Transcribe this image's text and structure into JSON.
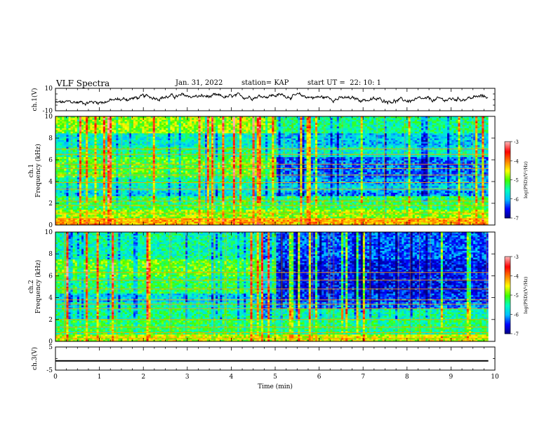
{
  "header": {
    "title": "VLF Spectra",
    "date": "Jan. 31, 2022",
    "station": "station= KAP",
    "start": "start UT =  22: 10: 1"
  },
  "colors": {
    "waveform": "#000000",
    "colormap": [
      "#00007f",
      "#0000ff",
      "#00bfff",
      "#00ffbf",
      "#40ff00",
      "#ffff00",
      "#ff8000",
      "#ff0000",
      "#ffb0b0"
    ]
  },
  "chart_data": [
    {
      "type": "line",
      "panel": "ch1-waveform",
      "ylabel": "ch.1(V)",
      "ylim": [
        -10,
        10
      ],
      "yticks": [
        "10",
        "-10"
      ],
      "xlim": [
        0,
        10
      ],
      "x_end": 9.85,
      "trend": {
        "x": [
          0,
          1,
          2,
          3,
          4,
          5,
          6,
          7,
          8,
          9,
          9.85
        ],
        "y": [
          -3,
          -2,
          2,
          3,
          2,
          4,
          2,
          0,
          -1,
          0,
          3
        ]
      }
    },
    {
      "type": "heatmap",
      "panel": "ch1-spectrogram",
      "ylabel": "ch.1",
      "ylabel2": "Frequency (kHz)",
      "ylim": [
        0,
        10
      ],
      "yticks": [
        "0",
        "2",
        "4",
        "6",
        "8",
        "10"
      ],
      "xlim": [
        0,
        10
      ],
      "x_end": 9.85,
      "colorbar": {
        "label": "log(PSD)(V²/Hz)",
        "range": [
          -7,
          -3
        ],
        "ticks": [
          "-3",
          "-4",
          "-5",
          "-6",
          "-7"
        ]
      },
      "profile_before_5min": [
        {
          "f": [
            0,
            0.7
          ],
          "level": 0.7
        },
        {
          "f": [
            0.7,
            1.4
          ],
          "level": 0.55
        },
        {
          "f": [
            1.4,
            2.6
          ],
          "level": 0.45
        },
        {
          "f": [
            2.6,
            3.2
          ],
          "level": 0.3
        },
        {
          "f": [
            3.2,
            3.8
          ],
          "level": 0.35
        },
        {
          "f": [
            3.8,
            4.4
          ],
          "level": 0.4
        },
        {
          "f": [
            4.4,
            6.2
          ],
          "level": 0.5
        },
        {
          "f": [
            6.2,
            7.2
          ],
          "level": 0.42
        },
        {
          "f": [
            7.2,
            8.4
          ],
          "level": 0.35
        },
        {
          "f": [
            8.4,
            10
          ],
          "level": 0.55
        }
      ],
      "profile_after_5min": [
        {
          "f": [
            0,
            0.7
          ],
          "level": 0.7
        },
        {
          "f": [
            0.7,
            1.4
          ],
          "level": 0.55
        },
        {
          "f": [
            1.4,
            2.6
          ],
          "level": 0.45
        },
        {
          "f": [
            2.6,
            3.2
          ],
          "level": 0.22
        },
        {
          "f": [
            3.2,
            3.8
          ],
          "level": 0.3
        },
        {
          "f": [
            3.8,
            4.4
          ],
          "level": 0.25
        },
        {
          "f": [
            4.4,
            6.2
          ],
          "level": 0.2
        },
        {
          "f": [
            6.2,
            7.2
          ],
          "level": 0.35
        },
        {
          "f": [
            7.2,
            8.4
          ],
          "level": 0.28
        },
        {
          "f": [
            8.4,
            10
          ],
          "level": 0.4
        }
      ],
      "lines_khz": [
        0.3,
        0.6,
        1.1,
        1.8,
        2.2,
        3.3,
        3.9,
        4.6,
        5.2,
        5.6,
        6.5,
        7.0
      ]
    },
    {
      "type": "heatmap",
      "panel": "ch2-spectrogram",
      "ylabel": "ch.2",
      "ylabel2": "Frequency (kHz)",
      "ylim": [
        0,
        10
      ],
      "yticks": [
        "0",
        "2",
        "4",
        "6",
        "8",
        "10"
      ],
      "xlim": [
        0,
        10
      ],
      "x_end": 9.85,
      "colorbar": {
        "label": "log(PSD)(V²/Hz)",
        "range": [
          -7,
          -3
        ],
        "ticks": [
          "-3",
          "-4",
          "-5",
          "-6",
          "-7"
        ]
      },
      "profile_before_5min": [
        {
          "f": [
            0,
            0.7
          ],
          "level": 0.6
        },
        {
          "f": [
            0.7,
            2.0
          ],
          "level": 0.45
        },
        {
          "f": [
            2.0,
            3.0
          ],
          "level": 0.4
        },
        {
          "f": [
            3.0,
            3.6
          ],
          "level": 0.38
        },
        {
          "f": [
            3.6,
            4.4
          ],
          "level": 0.3
        },
        {
          "f": [
            4.4,
            6.0
          ],
          "level": 0.45
        },
        {
          "f": [
            6.0,
            7.5
          ],
          "level": 0.5
        },
        {
          "f": [
            7.5,
            10
          ],
          "level": 0.38
        }
      ],
      "profile_after_5min": [
        {
          "f": [
            0,
            0.7
          ],
          "level": 0.6
        },
        {
          "f": [
            0.7,
            2.0
          ],
          "level": 0.42
        },
        {
          "f": [
            2.0,
            3.0
          ],
          "level": 0.38
        },
        {
          "f": [
            3.0,
            3.6
          ],
          "level": 0.22
        },
        {
          "f": [
            3.6,
            4.4
          ],
          "level": 0.15
        },
        {
          "f": [
            4.4,
            6.0
          ],
          "level": 0.12
        },
        {
          "f": [
            6.0,
            7.5
          ],
          "level": 0.12
        },
        {
          "f": [
            7.5,
            10
          ],
          "level": 0.18
        }
      ],
      "lines_khz": [
        0.3,
        0.8,
        1.3,
        2.0,
        3.0,
        3.4,
        3.8,
        4.8,
        5.6,
        6.3
      ]
    },
    {
      "type": "line",
      "panel": "ch3-waveform",
      "ylabel": "ch.3(V)",
      "ylim": [
        -5,
        5
      ],
      "yticks": [
        "5",
        "-5"
      ],
      "xlim": [
        0,
        10
      ],
      "x_end": 9.85,
      "level": [
        -1.3,
        -0.7
      ]
    }
  ],
  "xaxis": {
    "label": "Time (min)",
    "ticks": [
      "0",
      "1",
      "2",
      "3",
      "4",
      "5",
      "6",
      "7",
      "8",
      "9",
      "10"
    ]
  }
}
